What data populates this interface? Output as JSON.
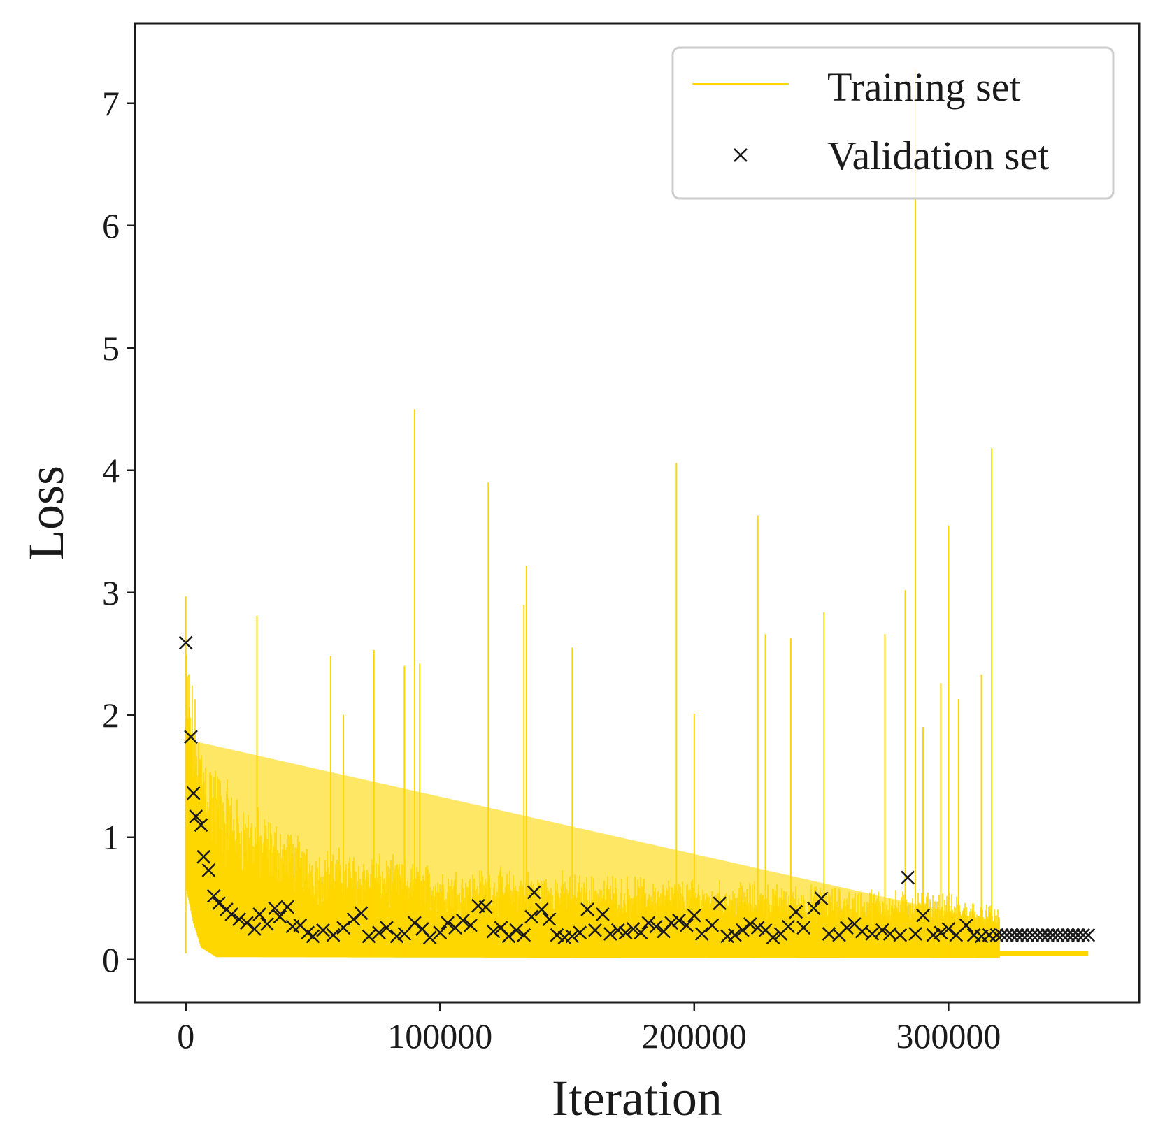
{
  "chart_data": {
    "type": "line",
    "title": "",
    "xlabel": "Iteration",
    "ylabel": "Loss",
    "xlim": [
      -20000,
      375000
    ],
    "ylim": [
      -0.35,
      7.65
    ],
    "xticks": [
      0,
      100000,
      200000,
      300000
    ],
    "xtick_labels": [
      "0",
      "100000",
      "200000",
      "300000"
    ],
    "yticks": [
      0,
      1,
      2,
      3,
      4,
      5,
      6,
      7
    ],
    "ytick_labels": [
      "0",
      "1",
      "2",
      "3",
      "4",
      "5",
      "6",
      "7"
    ],
    "grid": false,
    "legend_position": "top-right",
    "colors": {
      "training": "#FFD700",
      "validation": "#1a1a1a",
      "axes": "#1a1a1a"
    },
    "series": [
      {
        "name": "Training set",
        "kind": "line",
        "style": "dense noisy band from near 0 up to an envelope, with isolated spikes",
        "envelope": [
          [
            0,
            2.5
          ],
          [
            2000,
            2.2
          ],
          [
            5000,
            1.8
          ],
          [
            10000,
            1.6
          ],
          [
            15000,
            1.4
          ],
          [
            20000,
            1.25
          ],
          [
            30000,
            1.1
          ],
          [
            40000,
            1.0
          ],
          [
            50000,
            0.85
          ],
          [
            70000,
            0.8
          ],
          [
            100000,
            0.7
          ],
          [
            150000,
            0.65
          ],
          [
            200000,
            0.6
          ],
          [
            250000,
            0.55
          ],
          [
            300000,
            0.5
          ],
          [
            320000,
            0.4
          ]
        ],
        "floor": [
          [
            0,
            0.6
          ],
          [
            3000,
            0.3
          ],
          [
            6000,
            0.1
          ],
          [
            12000,
            0.02
          ],
          [
            320000,
            0.01
          ]
        ],
        "flat_tail": {
          "x_start": 320000,
          "x_end": 355000,
          "y": 0.05
        },
        "spikes": [
          [
            0,
            2.97
          ],
          [
            28000,
            2.81
          ],
          [
            57000,
            2.48
          ],
          [
            62000,
            2.0
          ],
          [
            74000,
            2.53
          ],
          [
            86000,
            2.4
          ],
          [
            90000,
            4.5
          ],
          [
            92000,
            2.42
          ],
          [
            119000,
            3.9
          ],
          [
            133000,
            2.9
          ],
          [
            134000,
            3.22
          ],
          [
            152000,
            2.55
          ],
          [
            193000,
            4.06
          ],
          [
            200000,
            2.01
          ],
          [
            225000,
            3.63
          ],
          [
            228000,
            2.66
          ],
          [
            238000,
            2.63
          ],
          [
            251000,
            2.84
          ],
          [
            275000,
            2.66
          ],
          [
            283000,
            3.02
          ],
          [
            287000,
            7.28
          ],
          [
            290000,
            1.9
          ],
          [
            297000,
            2.26
          ],
          [
            300000,
            3.55
          ],
          [
            304000,
            2.13
          ],
          [
            313000,
            2.33
          ],
          [
            317000,
            4.18
          ]
        ]
      },
      {
        "name": "Validation set",
        "kind": "scatter",
        "marker": "x",
        "points": [
          [
            0,
            2.59
          ],
          [
            2000,
            1.82
          ],
          [
            3000,
            1.36
          ],
          [
            4000,
            1.17
          ],
          [
            6000,
            1.1
          ],
          [
            7000,
            0.84
          ],
          [
            9000,
            0.73
          ],
          [
            11000,
            0.52
          ],
          [
            13000,
            0.46
          ],
          [
            16000,
            0.41
          ],
          [
            18000,
            0.37
          ],
          [
            21000,
            0.33
          ],
          [
            24000,
            0.3
          ],
          [
            27000,
            0.25
          ],
          [
            29000,
            0.37
          ],
          [
            32000,
            0.29
          ],
          [
            35000,
            0.42
          ],
          [
            37000,
            0.35
          ],
          [
            40000,
            0.43
          ],
          [
            42000,
            0.27
          ],
          [
            45000,
            0.28
          ],
          [
            48000,
            0.22
          ],
          [
            50000,
            0.19
          ],
          [
            54000,
            0.24
          ],
          [
            58000,
            0.2
          ],
          [
            62000,
            0.26
          ],
          [
            66000,
            0.33
          ],
          [
            69000,
            0.38
          ],
          [
            72000,
            0.19
          ],
          [
            76000,
            0.22
          ],
          [
            79000,
            0.26
          ],
          [
            83000,
            0.19
          ],
          [
            86000,
            0.21
          ],
          [
            90000,
            0.3
          ],
          [
            93000,
            0.25
          ],
          [
            96000,
            0.18
          ],
          [
            100000,
            0.22
          ],
          [
            103000,
            0.3
          ],
          [
            106000,
            0.26
          ],
          [
            109000,
            0.32
          ],
          [
            112000,
            0.28
          ],
          [
            115000,
            0.44
          ],
          [
            118000,
            0.43
          ],
          [
            121000,
            0.23
          ],
          [
            124000,
            0.26
          ],
          [
            127000,
            0.19
          ],
          [
            130000,
            0.24
          ],
          [
            133000,
            0.2
          ],
          [
            136000,
            0.35
          ],
          [
            137000,
            0.55
          ],
          [
            140000,
            0.41
          ],
          [
            143000,
            0.33
          ],
          [
            146000,
            0.2
          ],
          [
            149000,
            0.18
          ],
          [
            152000,
            0.19
          ],
          [
            155000,
            0.22
          ],
          [
            158000,
            0.41
          ],
          [
            161000,
            0.24
          ],
          [
            164000,
            0.37
          ],
          [
            167000,
            0.21
          ],
          [
            170000,
            0.24
          ],
          [
            173000,
            0.22
          ],
          [
            176000,
            0.25
          ],
          [
            179000,
            0.22
          ],
          [
            182000,
            0.3
          ],
          [
            185000,
            0.27
          ],
          [
            188000,
            0.23
          ],
          [
            191000,
            0.3
          ],
          [
            194000,
            0.32
          ],
          [
            197000,
            0.28
          ],
          [
            200000,
            0.36
          ],
          [
            203000,
            0.21
          ],
          [
            207000,
            0.28
          ],
          [
            210000,
            0.46
          ],
          [
            213000,
            0.19
          ],
          [
            216000,
            0.2
          ],
          [
            219000,
            0.24
          ],
          [
            222000,
            0.29
          ],
          [
            225000,
            0.26
          ],
          [
            228000,
            0.24
          ],
          [
            231000,
            0.18
          ],
          [
            234000,
            0.21
          ],
          [
            237000,
            0.27
          ],
          [
            240000,
            0.39
          ],
          [
            243000,
            0.26
          ],
          [
            247000,
            0.42
          ],
          [
            250000,
            0.5
          ],
          [
            253000,
            0.21
          ],
          [
            257000,
            0.2
          ],
          [
            260000,
            0.26
          ],
          [
            263000,
            0.29
          ],
          [
            266000,
            0.23
          ],
          [
            270000,
            0.21
          ],
          [
            274000,
            0.24
          ],
          [
            277000,
            0.21
          ],
          [
            281000,
            0.2
          ],
          [
            284000,
            0.67
          ],
          [
            287000,
            0.21
          ],
          [
            290000,
            0.36
          ],
          [
            294000,
            0.2
          ],
          [
            297000,
            0.22
          ],
          [
            300000,
            0.25
          ],
          [
            303000,
            0.2
          ],
          [
            307000,
            0.28
          ],
          [
            310000,
            0.2
          ],
          [
            313000,
            0.19
          ],
          [
            316000,
            0.2
          ],
          [
            319000,
            0.2
          ],
          [
            321000,
            0.2
          ],
          [
            323000,
            0.2
          ],
          [
            325000,
            0.2
          ],
          [
            327000,
            0.2
          ],
          [
            329000,
            0.2
          ],
          [
            331000,
            0.2
          ],
          [
            333000,
            0.2
          ],
          [
            335000,
            0.2
          ],
          [
            337000,
            0.2
          ],
          [
            339000,
            0.2
          ],
          [
            341000,
            0.2
          ],
          [
            343000,
            0.2
          ],
          [
            345000,
            0.2
          ],
          [
            347000,
            0.2
          ],
          [
            349000,
            0.2
          ],
          [
            351000,
            0.2
          ],
          [
            353000,
            0.2
          ],
          [
            355000,
            0.2
          ]
        ]
      }
    ]
  }
}
